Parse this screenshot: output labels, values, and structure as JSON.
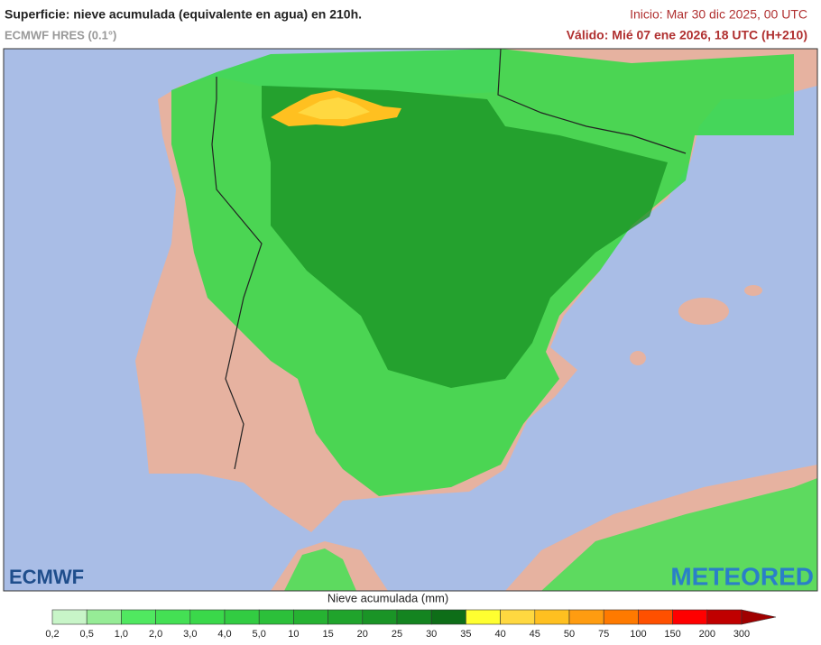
{
  "header": {
    "title": "Superficie: nieve acumulada (equivalente en agua) en 210h.",
    "model": "ECMWF HRES (0.1°)",
    "start": "Inicio: Mar 30 dic 2025, 00 UTC",
    "valid": "Válido: Mié 07 ene 2026, 18 UTC (H+210)"
  },
  "logos": {
    "left": "ECMWF",
    "right": "METEORED"
  },
  "legend": {
    "title": "Nieve acumulada (mm)",
    "labels": [
      "0,2",
      "0,5",
      "1,0",
      "2,0",
      "3,0",
      "4,0",
      "5,0",
      "10",
      "15",
      "20",
      "25",
      "30",
      "35",
      "40",
      "45",
      "50",
      "75",
      "100",
      "150",
      "200",
      "300"
    ],
    "colors": [
      "#c8f5c8",
      "#96ec96",
      "#50e860",
      "#44e054",
      "#3ad84a",
      "#32cc42",
      "#2cc03a",
      "#26b232",
      "#20a42c",
      "#1a9426",
      "#148420",
      "#0e6e18",
      "#ffff30",
      "#ffd840",
      "#ffc020",
      "#ff9c10",
      "#ff7a00",
      "#ff5000",
      "#ff0000",
      "#c00000"
    ],
    "arrow_color": "#a00000"
  }
}
